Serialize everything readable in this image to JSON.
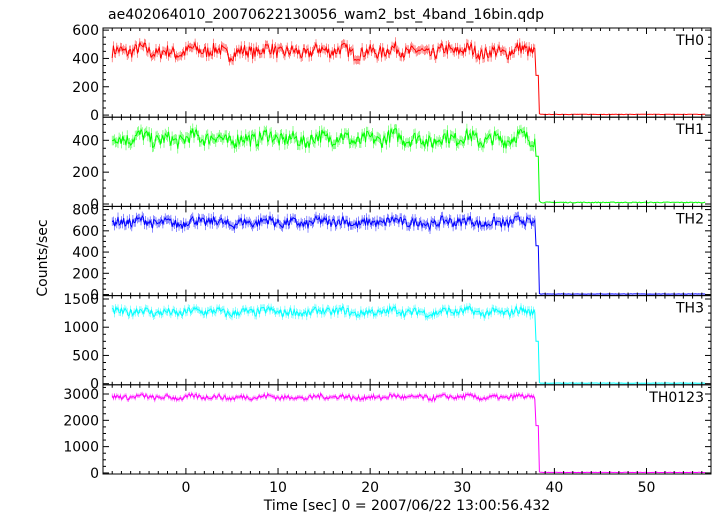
{
  "chart_data": {
    "type": "line",
    "title": "ae402064010_20070622130056_wam2_bst_4band_16bin.qdp",
    "xlabel": "Time [sec] 0 = 2007/06/22 13:00:56.432",
    "ylabel": "Counts/sec",
    "xlim": [
      -9,
      57
    ],
    "xticks": [
      0,
      10,
      20,
      30,
      40,
      50
    ],
    "xtick_labels": [
      "0",
      "10",
      "20",
      "30",
      "40",
      "50"
    ],
    "drop_time": 38.3,
    "panels": [
      {
        "name": "TH0",
        "color": "#ff0000",
        "ylim": [
          -15,
          615
        ],
        "yticks": [
          0,
          200,
          400,
          600
        ],
        "ytick_labels": [
          "0",
          "200",
          "400",
          "600"
        ],
        "level": 450,
        "noise": 45,
        "mid_level": 280,
        "post_level": 5,
        "error": 30
      },
      {
        "name": "TH1",
        "color": "#00ff00",
        "ylim": [
          -15,
          545
        ],
        "yticks": [
          0,
          200,
          400
        ],
        "ytick_labels": [
          "0",
          "200",
          "400"
        ],
        "level": 410,
        "noise": 45,
        "mid_level": 300,
        "post_level": 10,
        "error": 30
      },
      {
        "name": "TH2",
        "color": "#0000ff",
        "ylim": [
          -10,
          830
        ],
        "yticks": [
          0,
          200,
          400,
          600,
          800
        ],
        "ytick_labels": [
          "0",
          "200",
          "400",
          "600",
          "800"
        ],
        "level": 680,
        "noise": 45,
        "mid_level": 460,
        "post_level": 5,
        "error": 40
      },
      {
        "name": "TH3",
        "color": "#00ffff",
        "ylim": [
          -20,
          1560
        ],
        "yticks": [
          0,
          500,
          1000,
          1500
        ],
        "ytick_labels": [
          "0",
          "500",
          "1000",
          "1500"
        ],
        "level": 1270,
        "noise": 70,
        "mid_level": 750,
        "post_level": 10,
        "error": 60
      },
      {
        "name": "TH0123",
        "color": "#ff00ff",
        "ylim": [
          -40,
          3350
        ],
        "yticks": [
          0,
          1000,
          2000,
          3000
        ],
        "ytick_labels": [
          "0",
          "1000",
          "2000",
          "3000"
        ],
        "level": 2880,
        "noise": 90,
        "mid_level": 1800,
        "post_level": 20,
        "error": 80
      }
    ]
  }
}
